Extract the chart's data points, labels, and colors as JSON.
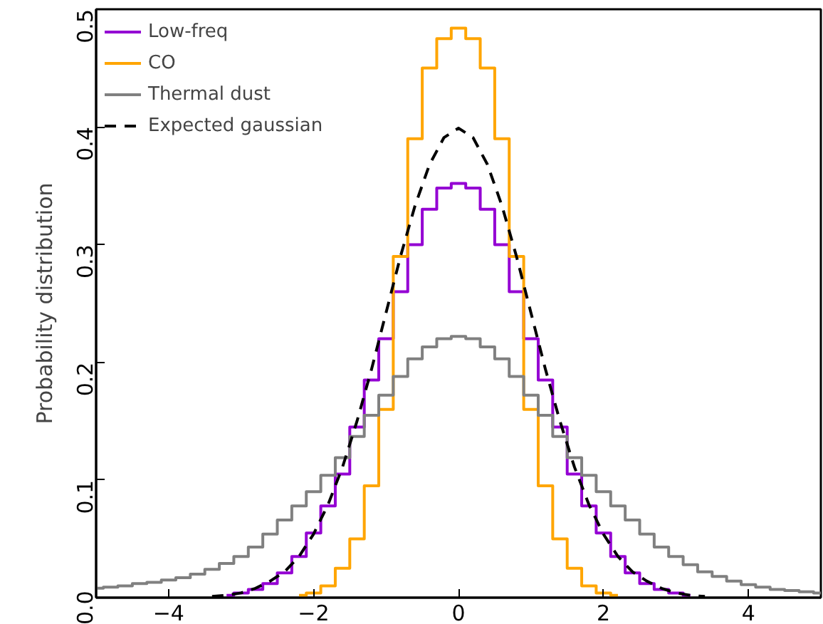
{
  "chart_data": {
    "type": "step",
    "ylabel": "Probability distribution",
    "xlim": [
      -5,
      5
    ],
    "ylim": [
      0,
      0.5
    ],
    "xticks": [
      {
        "value": -4,
        "label": "−4"
      },
      {
        "value": -2,
        "label": "−2"
      },
      0,
      2,
      4
    ],
    "yticks": [
      {
        "value": 0,
        "label": "0.0"
      },
      {
        "value": 0.1,
        "label": "0.1"
      },
      {
        "value": 0.2,
        "label": "0.2"
      },
      {
        "value": 0.3,
        "label": "0.3"
      },
      {
        "value": 0.4,
        "label": "0.4"
      },
      {
        "value": 0.5,
        "label": "0.5"
      }
    ],
    "grid": false,
    "legend": "top left",
    "series": [
      {
        "name": "Low-freq",
        "color": "#9400d3",
        "x": [
          -3.2,
          -3,
          -2.8,
          -2.6,
          -2.4,
          -2.2,
          -2,
          -1.8,
          -1.6,
          -1.4,
          -1.2,
          -1,
          -0.8,
          -0.6,
          -0.4,
          -0.2,
          0,
          0.2,
          0.4,
          0.6,
          0.8,
          1,
          1.2,
          1.4,
          1.6,
          1.8,
          2,
          2.2,
          2.4,
          2.6,
          2.8,
          3,
          3.2
        ],
        "values": [
          0.002,
          0.004,
          0.007,
          0.012,
          0.021,
          0.035,
          0.055,
          0.078,
          0.105,
          0.145,
          0.185,
          0.22,
          0.26,
          0.3,
          0.33,
          0.348,
          0.352,
          0.348,
          0.33,
          0.3,
          0.26,
          0.22,
          0.185,
          0.145,
          0.105,
          0.078,
          0.055,
          0.035,
          0.021,
          0.012,
          0.007,
          0.004,
          0.002
        ]
      },
      {
        "name": "CO",
        "color": "#ffa500",
        "x": [
          -2.2,
          -2,
          -1.8,
          -1.6,
          -1.4,
          -1.2,
          -1,
          -0.8,
          -0.6,
          -0.4,
          -0.2,
          0,
          0.2,
          0.4,
          0.6,
          0.8,
          1,
          1.2,
          1.4,
          1.6,
          1.8,
          2,
          2.2
        ],
        "values": [
          0.002,
          0.004,
          0.01,
          0.025,
          0.05,
          0.095,
          0.16,
          0.29,
          0.39,
          0.45,
          0.475,
          0.484,
          0.475,
          0.45,
          0.39,
          0.29,
          0.16,
          0.095,
          0.05,
          0.025,
          0.01,
          0.004,
          0.002
        ]
      },
      {
        "name": "Thermal dust",
        "color": "#808080",
        "x": [
          -5,
          -4.8,
          -4.6,
          -4.4,
          -4.2,
          -4,
          -3.8,
          -3.6,
          -3.4,
          -3.2,
          -3,
          -2.8,
          -2.6,
          -2.4,
          -2.2,
          -2,
          -1.8,
          -1.6,
          -1.4,
          -1.2,
          -1,
          -0.8,
          -0.6,
          -0.4,
          -0.2,
          0,
          0.2,
          0.4,
          0.6,
          0.8,
          1,
          1.2,
          1.4,
          1.6,
          1.8,
          2,
          2.2,
          2.4,
          2.6,
          2.8,
          3,
          3.2,
          3.4,
          3.6,
          3.8,
          4,
          4.2,
          4.4,
          4.6,
          4.8,
          5
        ],
        "values": [
          0.008,
          0.009,
          0.01,
          0.012,
          0.013,
          0.015,
          0.017,
          0.02,
          0.024,
          0.029,
          0.035,
          0.043,
          0.054,
          0.066,
          0.078,
          0.09,
          0.104,
          0.119,
          0.137,
          0.155,
          0.172,
          0.188,
          0.203,
          0.213,
          0.22,
          0.222,
          0.22,
          0.213,
          0.203,
          0.188,
          0.172,
          0.155,
          0.137,
          0.119,
          0.104,
          0.09,
          0.078,
          0.066,
          0.054,
          0.043,
          0.035,
          0.028,
          0.022,
          0.018,
          0.014,
          0.011,
          0.009,
          0.007,
          0.006,
          0.005,
          0.004
        ]
      },
      {
        "name": "Expected gaussian",
        "color": "#000000",
        "type": "line",
        "line_style": "dashed",
        "x": [
          -3.4,
          -3.2,
          -3,
          -2.8,
          -2.6,
          -2.4,
          -2.2,
          -2,
          -1.8,
          -1.6,
          -1.4,
          -1.2,
          -1,
          -0.8,
          -0.6,
          -0.4,
          -0.2,
          0,
          0.2,
          0.4,
          0.6,
          0.8,
          1,
          1.2,
          1.4,
          1.6,
          1.8,
          2,
          2.2,
          2.4,
          2.6,
          2.8,
          3,
          3.2,
          3.4
        ],
        "values": [
          0.001,
          0.002,
          0.004,
          0.008,
          0.014,
          0.022,
          0.035,
          0.054,
          0.079,
          0.111,
          0.15,
          0.194,
          0.242,
          0.29,
          0.333,
          0.368,
          0.391,
          0.399,
          0.391,
          0.368,
          0.333,
          0.29,
          0.242,
          0.194,
          0.15,
          0.111,
          0.079,
          0.054,
          0.035,
          0.022,
          0.014,
          0.008,
          0.004,
          0.002,
          0.001
        ]
      }
    ]
  }
}
